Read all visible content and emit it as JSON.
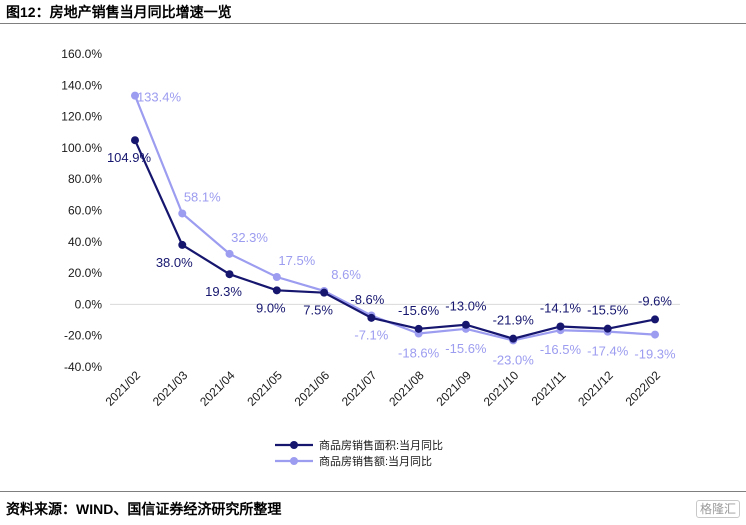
{
  "figure_title": "图12：房地产销售当月同比增速一览",
  "source": "资料来源：WIND、国信证券经济研究所整理",
  "watermark": "格隆汇",
  "colors": {
    "series1": "#16166f",
    "series2": "#9c9cf0",
    "axis": "#d9d9d9",
    "text": "#1a1a1a"
  },
  "chart_data": {
    "type": "line",
    "title": "",
    "xlabel": "",
    "ylabel": "",
    "ylim": [
      -40,
      160
    ],
    "yticks": [
      "-40.0%",
      "-20.0%",
      "0.0%",
      "20.0%",
      "40.0%",
      "60.0%",
      "80.0%",
      "100.0%",
      "120.0%",
      "140.0%",
      "160.0%"
    ],
    "ytick_values": [
      -40,
      -20,
      0,
      20,
      40,
      60,
      80,
      100,
      120,
      140,
      160
    ],
    "categories": [
      "2021/02",
      "2021/03",
      "2021/04",
      "2021/05",
      "2021/06",
      "2021/07",
      "2021/08",
      "2021/09",
      "2021/10",
      "2021/11",
      "2021/12",
      "2022/02"
    ],
    "grid": false,
    "legend_position": "bottom-center",
    "series": [
      {
        "name": "商品房销售面积:当月同比",
        "values": [
          104.9,
          38.0,
          19.3,
          9.0,
          7.5,
          -8.6,
          -15.6,
          -13.0,
          -21.9,
          -14.1,
          -15.5,
          -9.6
        ],
        "labels": [
          "104.9%",
          "38.0%",
          "19.3%",
          "9.0%",
          "7.5%",
          "-8.6%",
          "-15.6%",
          "-13.0%",
          "-21.9%",
          "-14.1%",
          "-15.5%",
          "-9.6%"
        ]
      },
      {
        "name": "商品房销售额:当月同比",
        "values": [
          133.4,
          58.1,
          32.3,
          17.5,
          8.6,
          -7.1,
          -18.6,
          -15.6,
          -23.0,
          -16.5,
          -17.4,
          -19.3
        ],
        "labels": [
          "133.4%",
          "58.1%",
          "32.3%",
          "17.5%",
          "8.6%",
          "-7.1%",
          "-18.6%",
          "-15.6%",
          "-23.0%",
          "-16.5%",
          "-17.4%",
          "-19.3%"
        ]
      }
    ]
  }
}
